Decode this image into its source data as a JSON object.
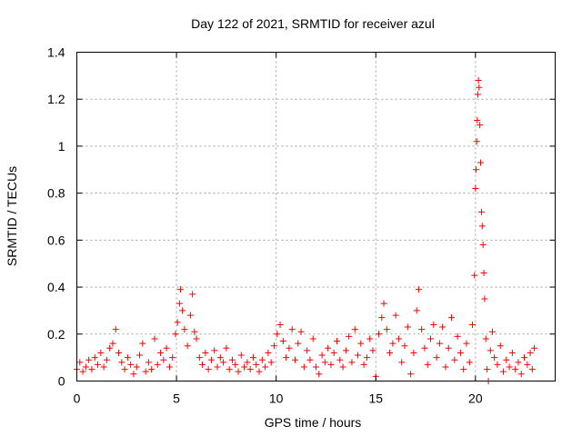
{
  "chart_data": {
    "type": "scatter",
    "title": "Day 122 of 2021, SRMTID for receiver azul",
    "xlabel": "GPS time / hours",
    "ylabel": "SRMTID / TECUs",
    "xlim": [
      0,
      24
    ],
    "ylim": [
      0,
      1.4
    ],
    "x_ticks": [
      0,
      5,
      10,
      15,
      20
    ],
    "y_ticks": [
      0,
      0.2,
      0.4,
      0.6,
      0.8,
      1,
      1.2,
      1.4
    ],
    "x_tick_labels": [
      "0",
      "5",
      "10",
      "15",
      "20"
    ],
    "y_tick_labels": [
      "0",
      "0.2",
      "0.4",
      "0.6",
      "0.8",
      "1",
      "1.2",
      "1.4"
    ],
    "grid": true,
    "marker": "+",
    "color": "#ff0000",
    "series": [
      {
        "name": "SRMTID",
        "points": [
          [
            0.0,
            0.05
          ],
          [
            0.15,
            0.08
          ],
          [
            0.3,
            0.04
          ],
          [
            0.45,
            0.06
          ],
          [
            0.6,
            0.09
          ],
          [
            0.75,
            0.05
          ],
          [
            0.9,
            0.1
          ],
          [
            1.05,
            0.07
          ],
          [
            1.2,
            0.12
          ],
          [
            1.35,
            0.06
          ],
          [
            1.5,
            0.09
          ],
          [
            1.65,
            0.14
          ],
          [
            1.8,
            0.16
          ],
          [
            1.95,
            0.22
          ],
          [
            2.1,
            0.12
          ],
          [
            2.25,
            0.08
          ],
          [
            2.4,
            0.05
          ],
          [
            2.55,
            0.1
          ],
          [
            2.7,
            0.07
          ],
          [
            2.85,
            0.03
          ],
          [
            3.0,
            0.06
          ],
          [
            3.15,
            0.11
          ],
          [
            3.3,
            0.16
          ],
          [
            3.45,
            0.04
          ],
          [
            3.6,
            0.08
          ],
          [
            3.75,
            0.05
          ],
          [
            3.9,
            0.18
          ],
          [
            4.05,
            0.07
          ],
          [
            4.2,
            0.12
          ],
          [
            4.35,
            0.09
          ],
          [
            4.5,
            0.14
          ],
          [
            4.65,
            0.06
          ],
          [
            4.8,
            0.1
          ],
          [
            4.95,
            0.2
          ],
          [
            5.05,
            0.25
          ],
          [
            5.15,
            0.33
          ],
          [
            5.2,
            0.39
          ],
          [
            5.3,
            0.3
          ],
          [
            5.4,
            0.22
          ],
          [
            5.55,
            0.15
          ],
          [
            5.7,
            0.28
          ],
          [
            5.8,
            0.37
          ],
          [
            5.9,
            0.21
          ],
          [
            6.0,
            0.18
          ],
          [
            6.15,
            0.1
          ],
          [
            6.3,
            0.07
          ],
          [
            6.45,
            0.12
          ],
          [
            6.6,
            0.05
          ],
          [
            6.75,
            0.09
          ],
          [
            6.9,
            0.13
          ],
          [
            7.05,
            0.06
          ],
          [
            7.2,
            0.1
          ],
          [
            7.35,
            0.08
          ],
          [
            7.5,
            0.14
          ],
          [
            7.65,
            0.05
          ],
          [
            7.8,
            0.09
          ],
          [
            7.95,
            0.07
          ],
          [
            8.1,
            0.04
          ],
          [
            8.25,
            0.11
          ],
          [
            8.4,
            0.06
          ],
          [
            8.55,
            0.08
          ],
          [
            8.7,
            0.05
          ],
          [
            8.85,
            0.1
          ],
          [
            9.0,
            0.07
          ],
          [
            9.15,
            0.04
          ],
          [
            9.3,
            0.09
          ],
          [
            9.45,
            0.06
          ],
          [
            9.6,
            0.12
          ],
          [
            9.75,
            0.08
          ],
          [
            9.9,
            0.15
          ],
          [
            10.05,
            0.2
          ],
          [
            10.2,
            0.24
          ],
          [
            10.35,
            0.17
          ],
          [
            10.5,
            0.1
          ],
          [
            10.65,
            0.14
          ],
          [
            10.8,
            0.22
          ],
          [
            10.95,
            0.09
          ],
          [
            11.1,
            0.16
          ],
          [
            11.25,
            0.21
          ],
          [
            11.4,
            0.06
          ],
          [
            11.55,
            0.13
          ],
          [
            11.7,
            0.09
          ],
          [
            11.85,
            0.18
          ],
          [
            12.0,
            0.06
          ],
          [
            12.15,
            0.03
          ],
          [
            12.3,
            0.11
          ],
          [
            12.45,
            0.08
          ],
          [
            12.6,
            0.14
          ],
          [
            12.75,
            0.07
          ],
          [
            12.9,
            0.12
          ],
          [
            13.05,
            0.17
          ],
          [
            13.2,
            0.09
          ],
          [
            13.35,
            0.06
          ],
          [
            13.5,
            0.13
          ],
          [
            13.65,
            0.19
          ],
          [
            13.8,
            0.08
          ],
          [
            13.95,
            0.22
          ],
          [
            14.1,
            0.11
          ],
          [
            14.25,
            0.16
          ],
          [
            14.4,
            0.07
          ],
          [
            14.55,
            0.1
          ],
          [
            14.7,
            0.18
          ],
          [
            14.85,
            0.13
          ],
          [
            15.0,
            0.02
          ],
          [
            15.15,
            0.2
          ],
          [
            15.3,
            0.27
          ],
          [
            15.4,
            0.33
          ],
          [
            15.55,
            0.22
          ],
          [
            15.7,
            0.12
          ],
          [
            15.85,
            0.16
          ],
          [
            16.0,
            0.28
          ],
          [
            16.15,
            0.18
          ],
          [
            16.3,
            0.08
          ],
          [
            16.45,
            0.15
          ],
          [
            16.6,
            0.23
          ],
          [
            16.75,
            0.03
          ],
          [
            16.9,
            0.12
          ],
          [
            17.05,
            0.3
          ],
          [
            17.15,
            0.39
          ],
          [
            17.3,
            0.22
          ],
          [
            17.45,
            0.14
          ],
          [
            17.6,
            0.07
          ],
          [
            17.75,
            0.18
          ],
          [
            17.9,
            0.24
          ],
          [
            18.05,
            0.1
          ],
          [
            18.2,
            0.16
          ],
          [
            18.35,
            0.23
          ],
          [
            18.5,
            0.06
          ],
          [
            18.65,
            0.14
          ],
          [
            18.8,
            0.27
          ],
          [
            18.95,
            0.09
          ],
          [
            19.1,
            0.19
          ],
          [
            19.25,
            0.12
          ],
          [
            19.4,
            0.05
          ],
          [
            19.55,
            0.16
          ],
          [
            19.7,
            0.08
          ],
          [
            19.85,
            0.24
          ],
          [
            19.95,
            0.45
          ],
          [
            20.0,
            0.82
          ],
          [
            20.03,
            0.9
          ],
          [
            20.06,
            1.02
          ],
          [
            20.09,
            1.11
          ],
          [
            20.12,
            1.22
          ],
          [
            20.15,
            1.28
          ],
          [
            20.18,
            1.25
          ],
          [
            20.22,
            1.09
          ],
          [
            20.26,
            0.93
          ],
          [
            20.3,
            0.72
          ],
          [
            20.34,
            0.66
          ],
          [
            20.38,
            0.58
          ],
          [
            20.42,
            0.46
          ],
          [
            20.46,
            0.35
          ],
          [
            20.52,
            0.18
          ],
          [
            20.58,
            0.05
          ],
          [
            20.65,
            0.0
          ],
          [
            20.75,
            0.13
          ],
          [
            20.85,
            0.21
          ],
          [
            20.95,
            0.1
          ],
          [
            21.1,
            0.07
          ],
          [
            21.25,
            0.15
          ],
          [
            21.4,
            0.04
          ],
          [
            21.55,
            0.09
          ],
          [
            21.7,
            0.06
          ],
          [
            21.85,
            0.12
          ],
          [
            22.0,
            0.05
          ],
          [
            22.15,
            0.08
          ],
          [
            22.3,
            0.03
          ],
          [
            22.45,
            0.1
          ],
          [
            22.6,
            0.07
          ],
          [
            22.75,
            0.12
          ],
          [
            22.85,
            0.05
          ],
          [
            22.95,
            0.14
          ]
        ]
      }
    ]
  }
}
